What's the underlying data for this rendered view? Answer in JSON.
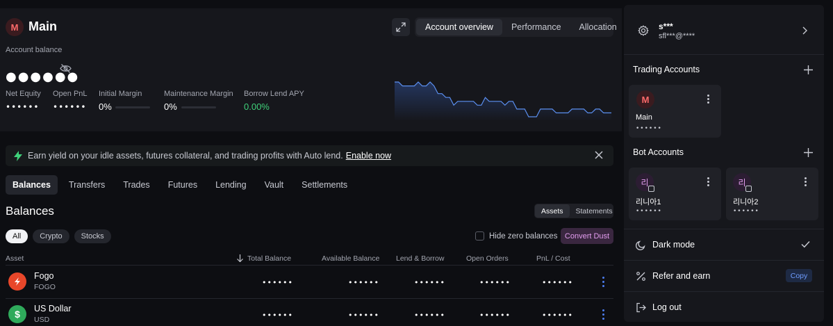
{
  "account": {
    "avatar_letter": "M",
    "title": "Main",
    "balance_label": "Account balance",
    "balance_masked": "●●●●●●",
    "metrics": [
      {
        "label": "Net Equity",
        "value": "••••••"
      },
      {
        "label": "Open PnL",
        "value": "••••••"
      },
      {
        "label": "Initial Margin",
        "value": "0%",
        "bar_fill": 0
      },
      {
        "label": "Maintenance Margin",
        "value": "0%",
        "bar_fill": 0
      },
      {
        "label": "Borrow Lend APY",
        "value": "0.00%"
      }
    ]
  },
  "view_tabs": [
    "Account overview",
    "Performance",
    "Allocation"
  ],
  "sparkline": {
    "values": [
      100,
      100,
      99,
      99,
      99,
      99,
      100,
      99,
      99,
      100,
      99,
      97,
      97,
      96,
      96,
      94,
      95,
      95,
      95,
      95,
      95,
      94,
      94,
      96,
      95,
      95,
      95,
      95,
      94,
      95,
      95,
      93,
      93,
      93,
      91,
      91,
      91,
      93,
      93,
      93,
      93,
      92,
      92,
      92,
      92,
      93,
      93,
      93,
      93,
      92,
      92,
      93,
      93,
      92,
      92,
      92
    ]
  },
  "banner": {
    "text": "Earn yield on your idle assets, futures collateral, and trading profits with Auto lend.",
    "link": "Enable now"
  },
  "main_tabs": [
    "Balances",
    "Transfers",
    "Trades",
    "Futures",
    "Lending",
    "Vault",
    "Settlements"
  ],
  "balances": {
    "title": "Balances",
    "toggle": [
      "Assets",
      "Statements"
    ],
    "filters": [
      "All",
      "Crypto",
      "Stocks"
    ],
    "hide_zero": "Hide zero balances",
    "convert_dust": "Convert Dust",
    "columns": [
      "Asset",
      "Total Balance",
      "Available Balance",
      "Lend & Borrow",
      "Open Orders",
      "PnL / Cost"
    ],
    "rows": [
      {
        "name": "Fogo",
        "symbol": "FOGO",
        "icon_color": "#e8472a",
        "values": [
          "••••••",
          "••••••",
          "••••••",
          "••••••",
          "••••••"
        ]
      },
      {
        "name": "US Dollar",
        "symbol": "USD",
        "icon_color": "#2faa5b",
        "values": [
          "••••••",
          "••••••",
          "••••••",
          "••••••",
          "••••••"
        ]
      }
    ]
  },
  "sidebar": {
    "user_name": "s***",
    "user_email": "sfl***@****",
    "trading_title": "Trading Accounts",
    "trading_accounts": [
      {
        "avatar": "M",
        "name": "Main",
        "masked": "••••••"
      }
    ],
    "bot_title": "Bot Accounts",
    "bot_accounts": [
      {
        "avatar": "리",
        "name": "리니아1",
        "masked": "••••••"
      },
      {
        "avatar": "리",
        "name": "리니아2",
        "masked": "••••••"
      }
    ],
    "menu": [
      {
        "label": "Dark mode",
        "icon": "moon-icon"
      },
      {
        "label": "Refer and earn",
        "icon": "percent-icon",
        "action": "Copy"
      },
      {
        "label": "Log out",
        "icon": "logout-icon"
      }
    ]
  }
}
